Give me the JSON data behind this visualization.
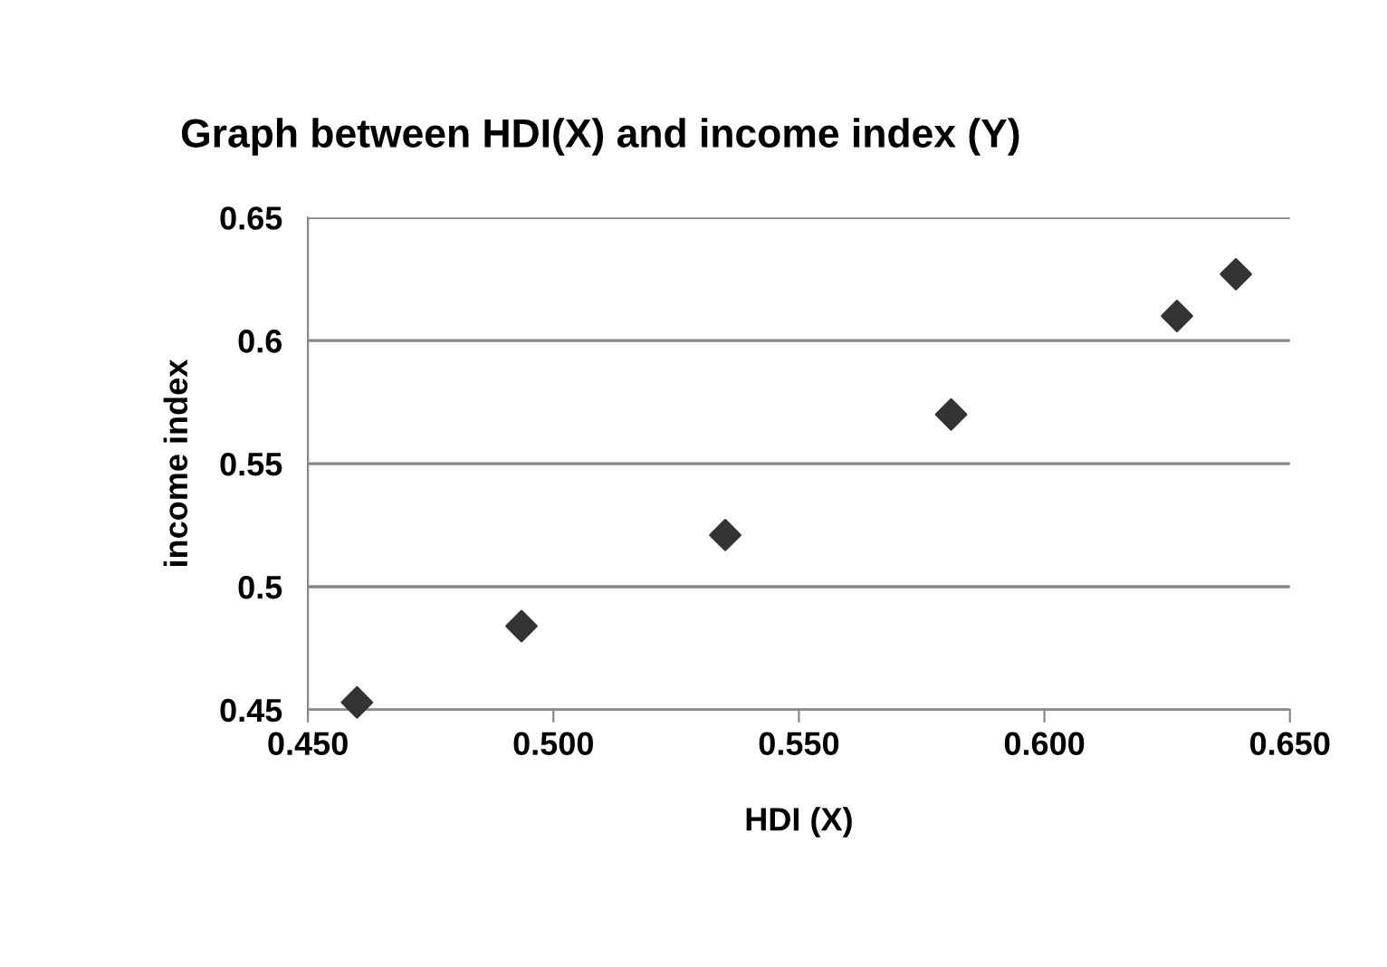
{
  "chart_data": {
    "type": "scatter",
    "title": "Graph between HDI(X) and income index (Y)",
    "xlabel": "HDI (X)",
    "ylabel": "income index",
    "x": [
      0.46,
      0.4935,
      0.535,
      0.581,
      0.627,
      0.639
    ],
    "values": [
      0.453,
      0.484,
      0.521,
      0.57,
      0.61,
      0.627
    ],
    "color": "#333333",
    "marker": "diamond",
    "xlim": [
      0.45,
      0.65
    ],
    "xticks": [
      {
        "value": 0.45,
        "label": "0.450"
      },
      {
        "value": 0.5,
        "label": "0.500"
      },
      {
        "value": 0.55,
        "label": "0.550"
      },
      {
        "value": 0.6,
        "label": "0.600"
      },
      {
        "value": 0.65,
        "label": "0.650"
      }
    ],
    "ylim": [
      0.45,
      0.65
    ],
    "yticks": [
      0.45,
      0.5,
      0.55,
      0.6,
      0.65
    ],
    "grid": "y"
  }
}
